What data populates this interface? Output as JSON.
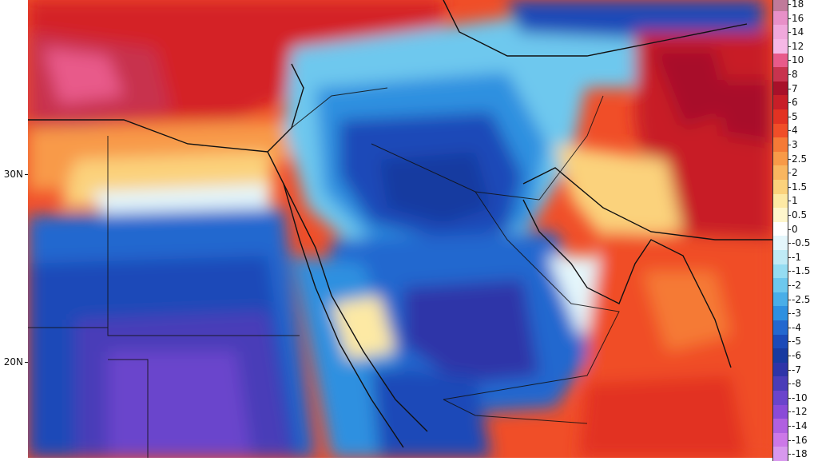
{
  "map": {
    "region": "Middle East / Arabian Peninsula",
    "lat_labels": [
      "30N",
      "20N"
    ],
    "colorbar_levels": [
      "18",
      "16",
      "14",
      "12",
      "10",
      "8",
      "7",
      "6",
      "5",
      "4",
      "3",
      "2.5",
      "2",
      "1.5",
      "1",
      "0.5",
      "0",
      "-0.5",
      "-1",
      "-1.5",
      "-2",
      "-2.5",
      "-3",
      "-4",
      "-5",
      "-6",
      "-7",
      "-8",
      "-10",
      "-12",
      "-14",
      "-16",
      "-18"
    ],
    "colorbar_colors": [
      "#c07a9a",
      "#e890c8",
      "#f0a8dc",
      "#f6b8e6",
      "#e85a8a",
      "#c8334e",
      "#a8102a",
      "#c81e28",
      "#e23222",
      "#f04e28",
      "#f57a36",
      "#f89a48",
      "#f9b660",
      "#fbd27c",
      "#fde9a4",
      "#fef6cc",
      "#ffffff",
      "#e4f6fb",
      "#bfeaf6",
      "#95dcf2",
      "#6ec8ee",
      "#4aaee8",
      "#2f90e0",
      "#2468cf",
      "#1c4ab8",
      "#183aa0",
      "#2e34a8",
      "#4a3cb8",
      "#6a44cc",
      "#8a4ad8",
      "#b060e0",
      "#cc78e8",
      "#d898ee"
    ]
  }
}
